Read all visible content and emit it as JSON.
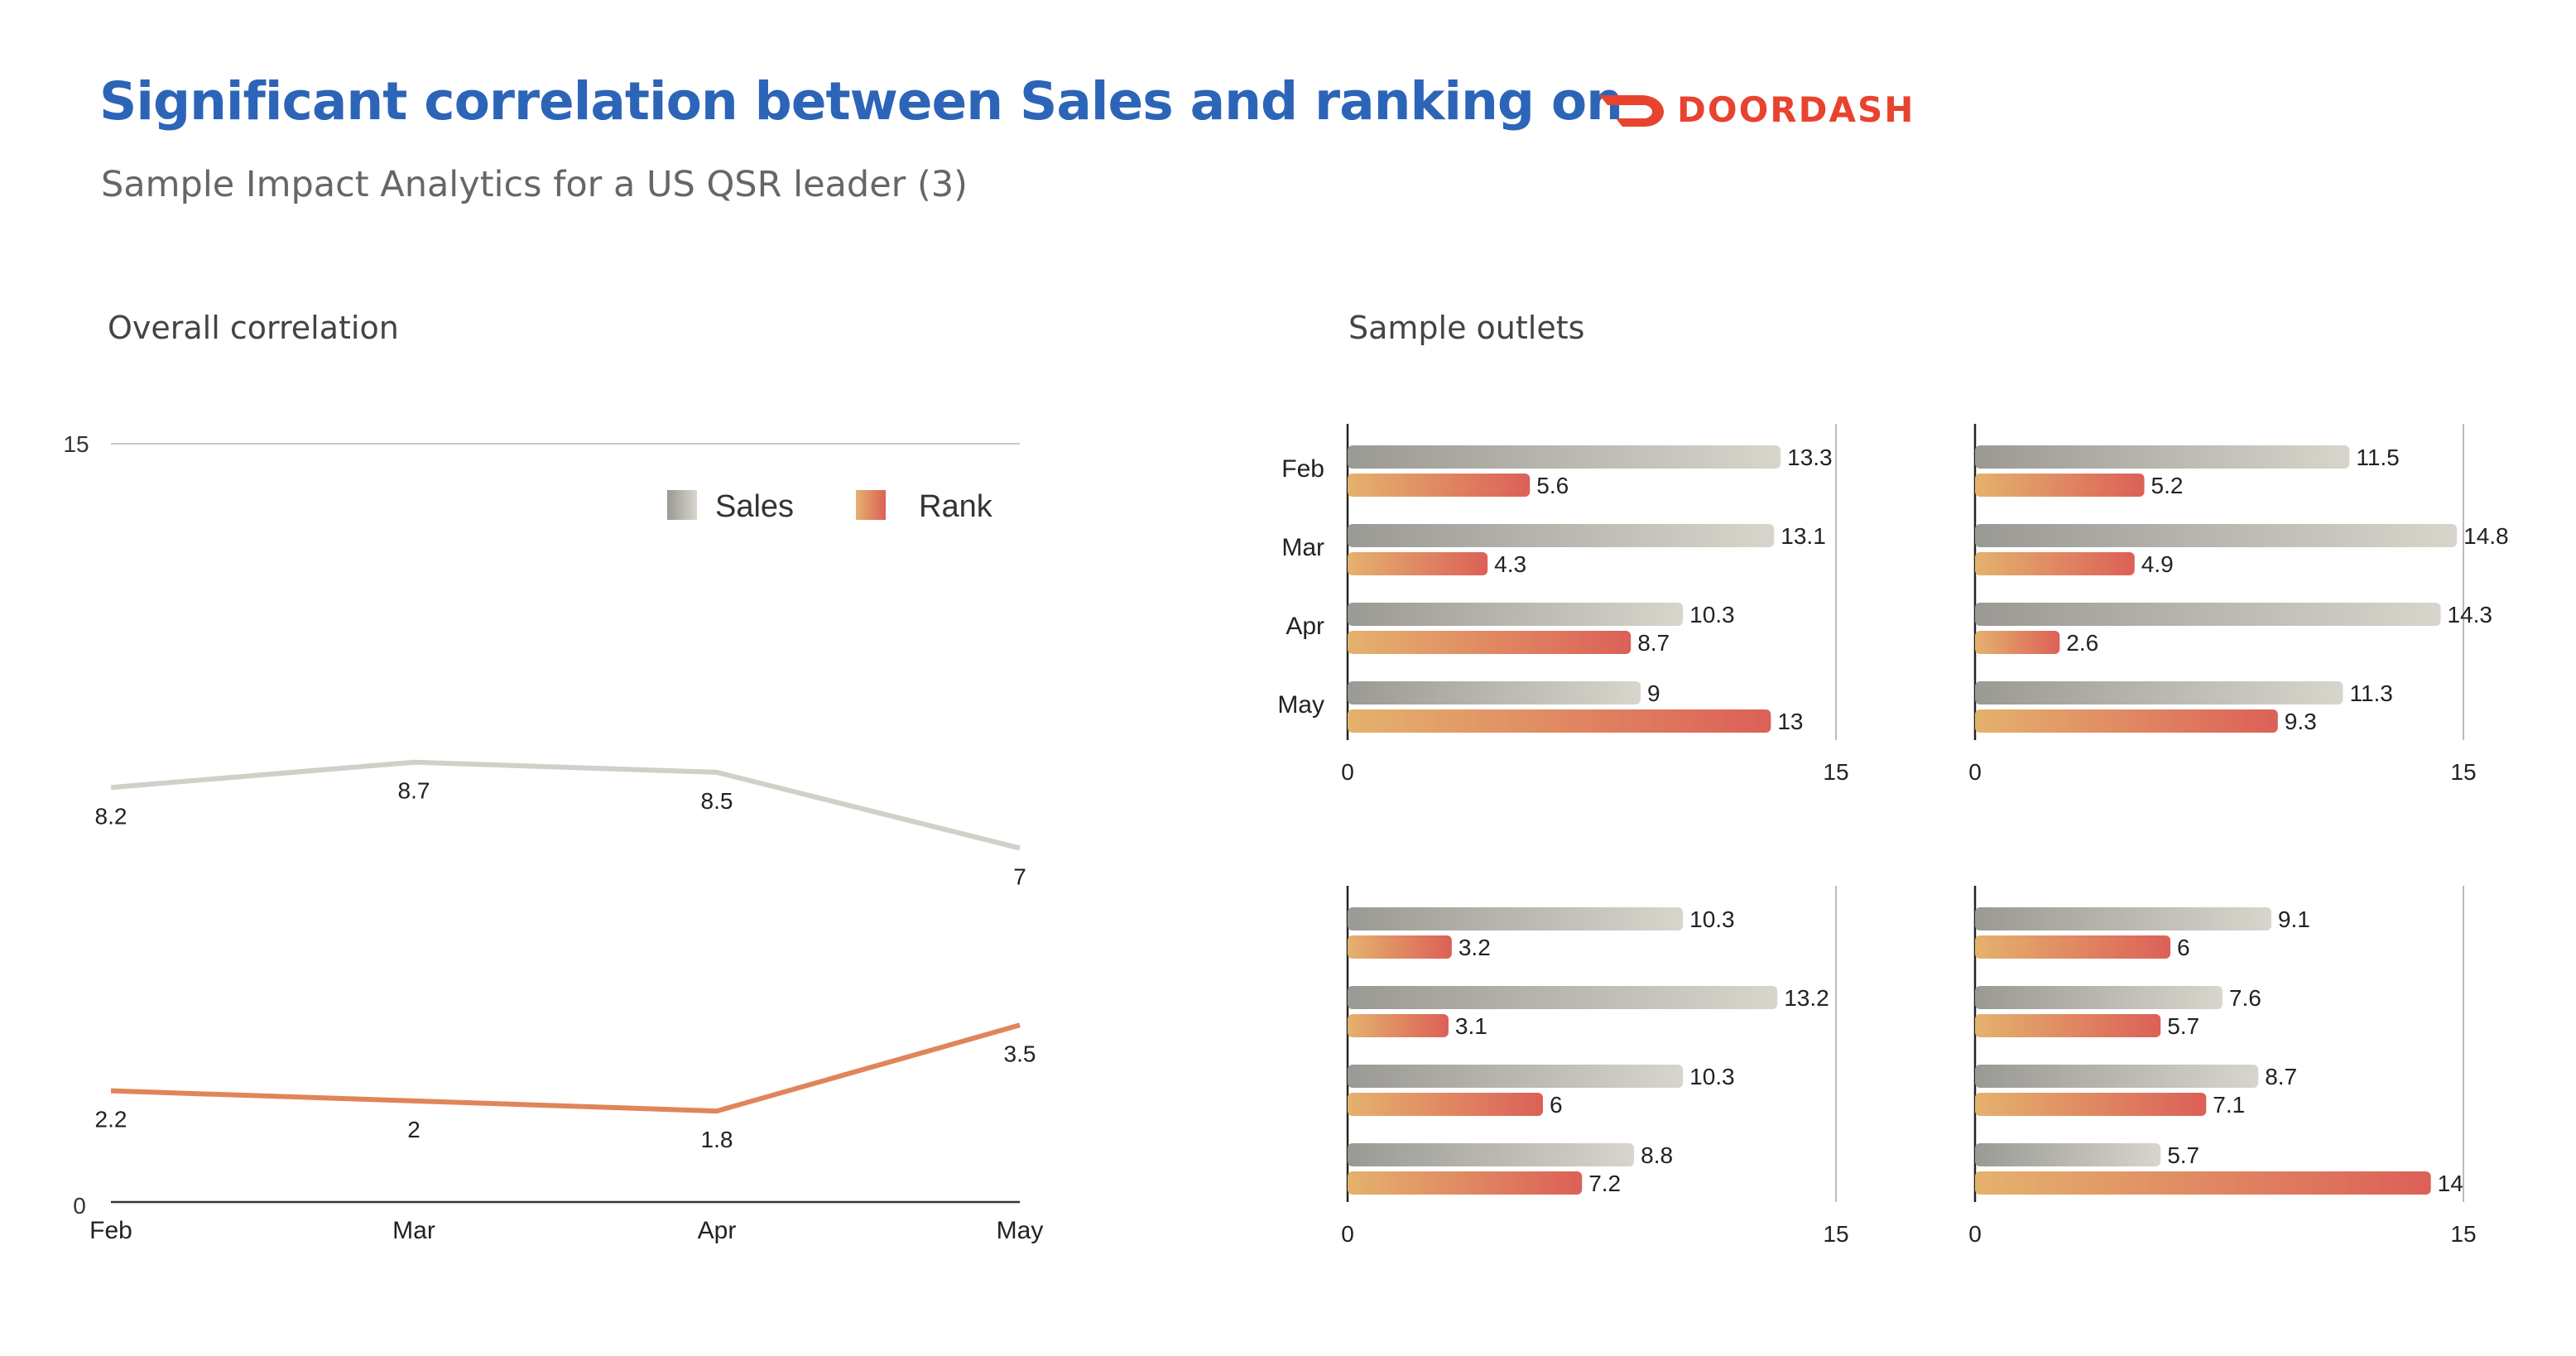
{
  "header": {
    "title": "Significant correlation between Sales and ranking on",
    "subtitle": "Sample Impact Analytics for a US QSR leader (3)",
    "logo_text": "DOORDASH",
    "logo_color": "#e8432f",
    "title_color": "#2c64b8"
  },
  "sections": {
    "left_label": "Overall correlation",
    "right_label": "Sample outlets"
  },
  "colors": {
    "sales_dark": "#9a9994",
    "sales_light": "#d8d5cc",
    "rank_light": "#e4b26d",
    "rank_dark": "#dc6058",
    "sales_line": "#d0cfc8",
    "rank_line": "#e0855a"
  },
  "chart_data": [
    {
      "type": "line",
      "title": "Overall correlation",
      "categories": [
        "Feb",
        "Mar",
        "Apr",
        "May"
      ],
      "ylim": [
        0,
        15
      ],
      "yticks": [
        "0",
        "15"
      ],
      "legend": [
        "Sales",
        "Rank"
      ],
      "legend_position": "top-right",
      "series": [
        {
          "name": "Sales",
          "values": [
            8.2,
            8.7,
            8.5,
            7
          ],
          "labels": [
            "8.2",
            "8.7",
            "8.5",
            "7"
          ]
        },
        {
          "name": "Rank",
          "values": [
            2.2,
            2,
            1.8,
            3.5
          ],
          "labels": [
            "2.2",
            "2",
            "1.8",
            "3.5"
          ]
        }
      ],
      "grid": true
    },
    {
      "type": "bar",
      "orientation": "horizontal",
      "title": "Sample outlets",
      "categories": [
        "Feb",
        "Mar",
        "Apr",
        "May"
      ],
      "xlim": [
        0,
        15
      ],
      "xticks": [
        "0",
        "15"
      ],
      "panels": [
        {
          "sales": [
            13.3,
            13.1,
            10.3,
            9
          ],
          "rank": [
            5.6,
            4.3,
            8.7,
            13
          ],
          "sales_labels": [
            "13.3",
            "13.1",
            "10.3",
            "9"
          ],
          "rank_labels": [
            "5.6",
            "4.3",
            "8.7",
            "13"
          ]
        },
        {
          "sales": [
            11.5,
            14.8,
            14.3,
            11.3
          ],
          "rank": [
            5.2,
            4.9,
            2.6,
            9.3
          ],
          "sales_labels": [
            "11.5",
            "14.8",
            "14.3",
            "11.3"
          ],
          "rank_labels": [
            "5.2",
            "4.9",
            "2.6",
            "9.3"
          ]
        },
        {
          "sales": [
            10.3,
            13.2,
            10.3,
            8.8
          ],
          "rank": [
            3.2,
            3.1,
            6,
            7.2
          ],
          "sales_labels": [
            "10.3",
            "13.2",
            "10.3",
            "8.8"
          ],
          "rank_labels": [
            "3.2",
            "3.1",
            "6",
            "7.2"
          ]
        },
        {
          "sales": [
            9.1,
            7.6,
            8.7,
            5.7
          ],
          "rank": [
            6,
            5.7,
            7.1,
            14
          ],
          "sales_labels": [
            "9.1",
            "7.6",
            "8.7",
            "5.7"
          ],
          "rank_labels": [
            "6",
            "5.7",
            "7.1",
            "14"
          ]
        }
      ]
    }
  ]
}
